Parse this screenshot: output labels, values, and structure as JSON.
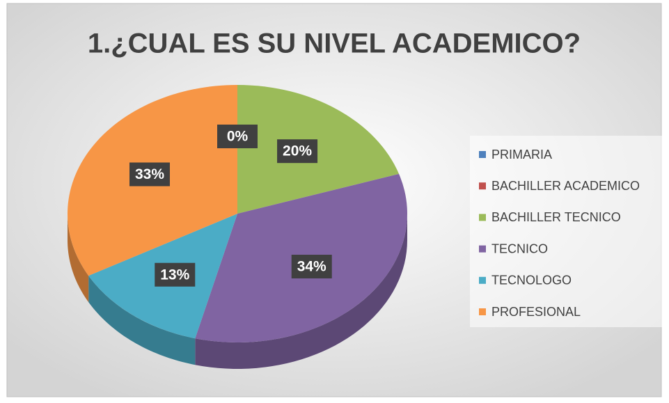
{
  "chart_data": {
    "type": "pie3d",
    "title": "1.¿CUAL ES SU NIVEL ACADEMICO?",
    "categories": [
      "PRIMARIA",
      "BACHILLER ACADEMICO",
      "BACHILLER TECNICO",
      "TECNICO",
      "TECNOLOGO",
      "PROFESIONAL"
    ],
    "values": [
      0,
      0,
      20,
      34,
      13,
      33
    ],
    "value_labels": [
      "0%",
      "0%",
      "20%",
      "34%",
      "13%",
      "33%"
    ],
    "colors": [
      "#4f81bd",
      "#c0504d",
      "#9bbb59",
      "#8064a2",
      "#4bacc6",
      "#f79646"
    ],
    "legend": "right"
  }
}
